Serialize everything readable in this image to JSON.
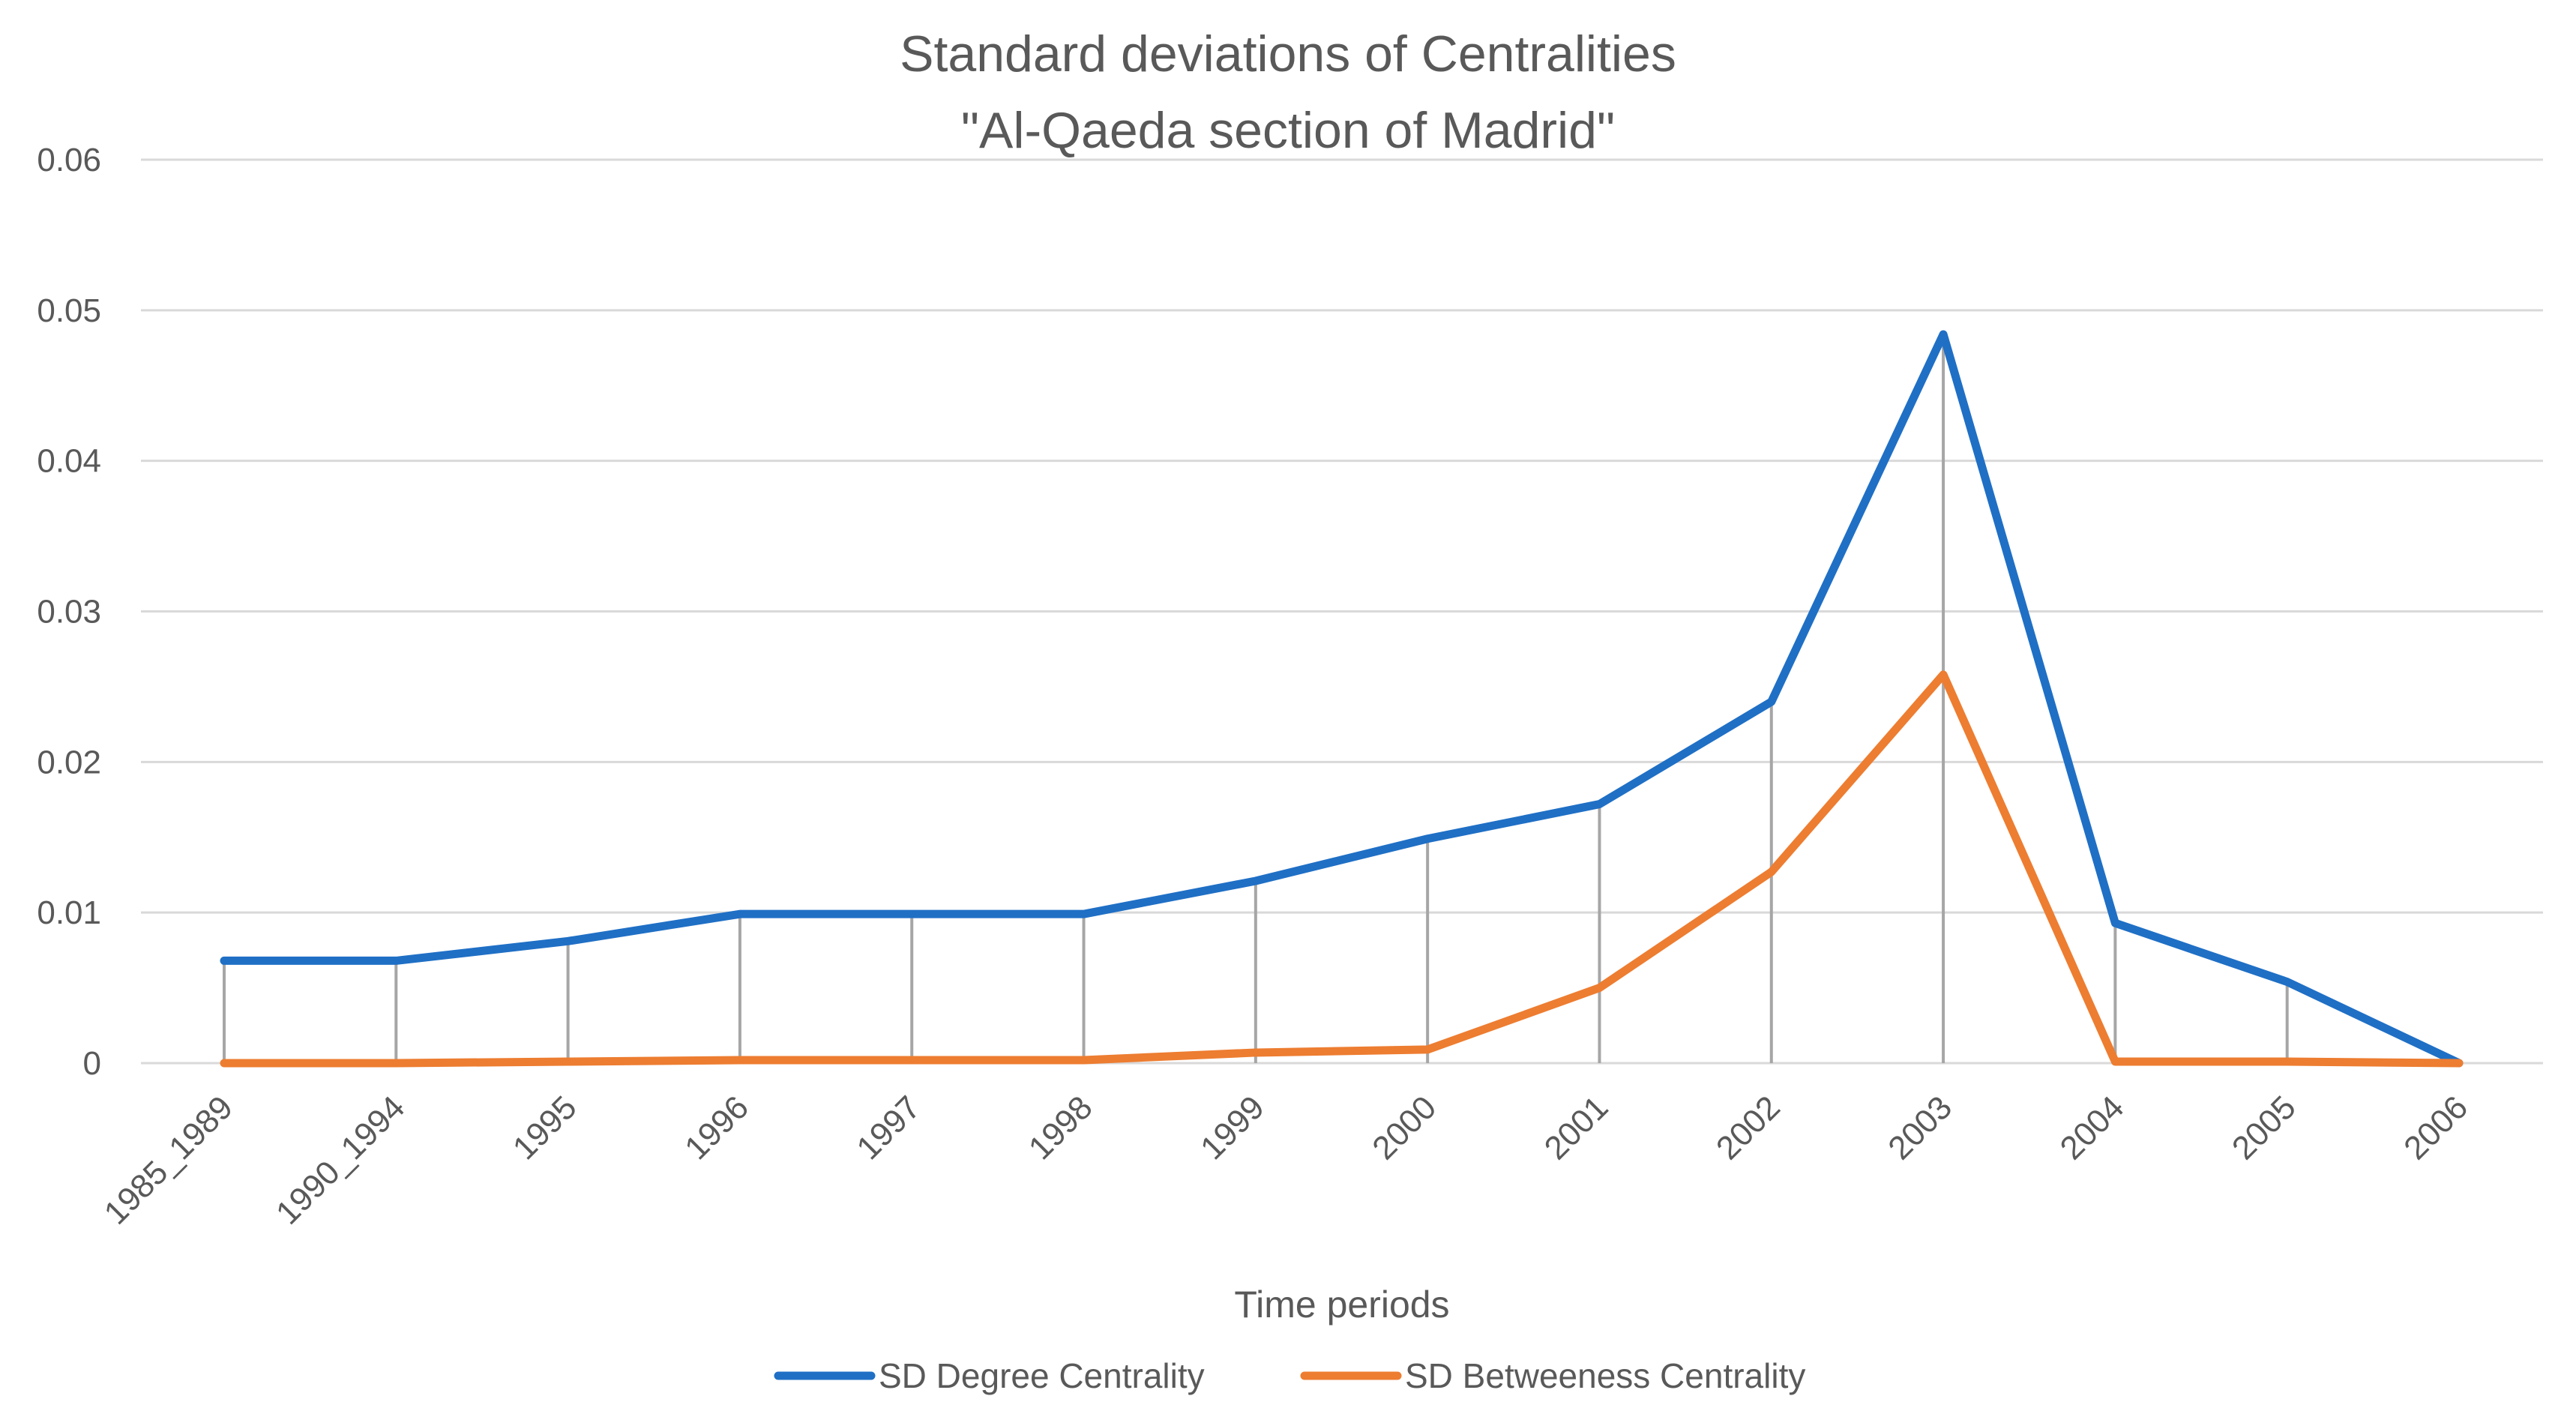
{
  "chart_data": {
    "type": "line",
    "title": [
      "Standard deviations of Centralities",
      "\"Al-Qaeda section of Madrid\""
    ],
    "xlabel": "Time periods",
    "ylabel": "",
    "ylim": [
      0,
      0.06
    ],
    "yticks": [
      "0",
      "0.01",
      "0.02",
      "0.03",
      "0.04",
      "0.05",
      "0.06"
    ],
    "yticks_values": [
      0,
      0.01,
      0.02,
      0.03,
      0.04,
      0.05,
      0.06
    ],
    "categories": [
      "1985_1989",
      "1990_1994",
      "1995",
      "1996",
      "1997",
      "1998",
      "1999",
      "2000",
      "2001",
      "2002",
      "2003",
      "2004",
      "2005",
      "2006"
    ],
    "grid": true,
    "drop_lines": true,
    "legend_position": "bottom",
    "series": [
      {
        "name": "SD Degree Centrality",
        "color": "#1f6fc5",
        "values": [
          0.0068,
          0.0068,
          0.0081,
          0.0099,
          0.0099,
          0.0099,
          0.0121,
          0.0149,
          0.0172,
          0.024,
          0.0484,
          0.0093,
          0.0054,
          0.0
        ]
      },
      {
        "name": "SD Betweeness Centrality",
        "color": "#ed7d31",
        "values": [
          0.0,
          0.0,
          0.0001,
          0.0002,
          0.0002,
          0.0002,
          0.0007,
          0.0009,
          0.005,
          0.0127,
          0.0258,
          0.0001,
          0.0001,
          0.0
        ]
      }
    ]
  }
}
